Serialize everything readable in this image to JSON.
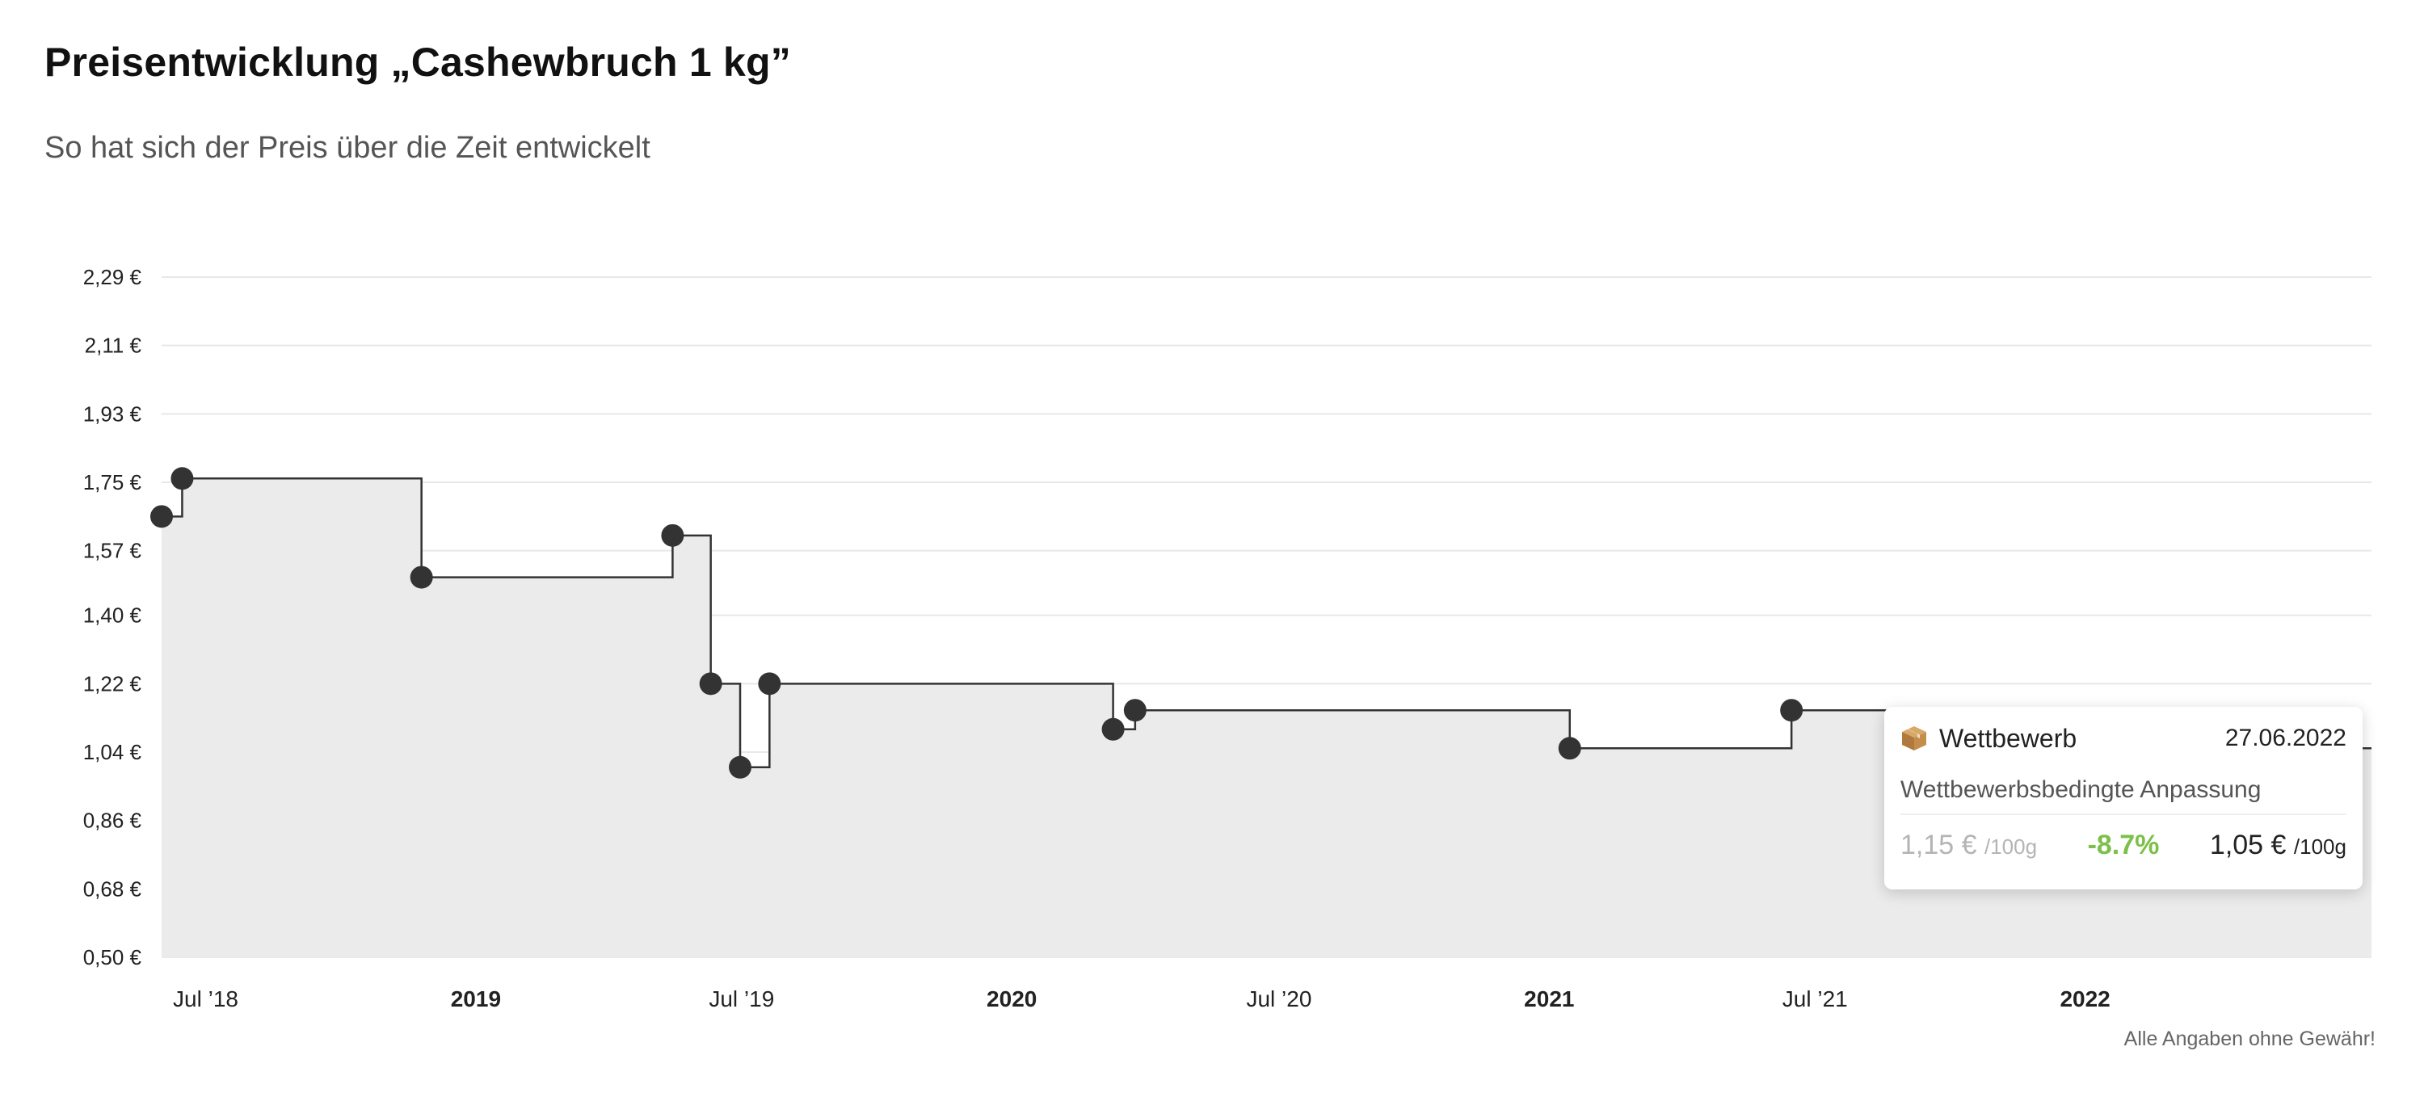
{
  "header": {
    "title": "Preisentwicklung „Cashewbruch 1 kg”",
    "subtitle": "So hat sich der Preis über die Zeit entwickelt"
  },
  "footer": {
    "disclaimer": "Alle Angaben ohne Gewähr!"
  },
  "tooltip": {
    "category": "Wettbewerb",
    "date": "27.06.2022",
    "description": "Wettbewerbsbedingte Anpassung",
    "old_price": "1,15 €",
    "old_unit": "/100g",
    "change": "-8.7%",
    "new_price": "1,05 €",
    "new_unit": "/100g",
    "icon": "package-icon"
  },
  "colors": {
    "line": "#333333",
    "fill": "#ebebeb",
    "point": "#333333",
    "change_negative": "#7cc04a",
    "grid": "#e8e8e8"
  },
  "chart_data": {
    "type": "line",
    "step": true,
    "title": "",
    "xlabel": "",
    "ylabel": "",
    "y_ticks": [
      "2,29 €",
      "2,11 €",
      "1,93 €",
      "1,75 €",
      "1,57 €",
      "1,40 €",
      "1,22 €",
      "1,04 €",
      "0,86 €",
      "0,68 €",
      "0,50 €"
    ],
    "y_tick_values": [
      2.29,
      2.11,
      1.93,
      1.75,
      1.57,
      1.4,
      1.22,
      1.04,
      0.86,
      0.68,
      0.5
    ],
    "ylim": [
      0.5,
      2.29
    ],
    "x_ticks": [
      {
        "label": "Jul ’18",
        "date": "2018-07-01",
        "bold": false
      },
      {
        "label": "2019",
        "date": "2019-01-01",
        "bold": true
      },
      {
        "label": "Jul ’19",
        "date": "2019-07-01",
        "bold": false
      },
      {
        "label": "2020",
        "date": "2020-01-01",
        "bold": true
      },
      {
        "label": "Jul ’20",
        "date": "2020-07-01",
        "bold": false
      },
      {
        "label": "2021",
        "date": "2021-01-01",
        "bold": true
      },
      {
        "label": "Jul ’21",
        "date": "2021-07-01",
        "bold": false
      },
      {
        "label": "2022",
        "date": "2022-01-01",
        "bold": true
      }
    ],
    "xlim": [
      "2018-06-01",
      "2022-07-15"
    ],
    "grid": true,
    "legend": "none",
    "series": [
      {
        "points": [
          {
            "x": "2018-06-01",
            "y": 1.66
          },
          {
            "x": "2018-06-15",
            "y": 1.76
          },
          {
            "x": "2018-11-25",
            "y": 1.5
          },
          {
            "x": "2019-05-15",
            "y": 1.61
          },
          {
            "x": "2019-06-10",
            "y": 1.22
          },
          {
            "x": "2019-06-30",
            "y": 1.0
          },
          {
            "x": "2019-07-20",
            "y": 1.22
          },
          {
            "x": "2020-03-10",
            "y": 1.1
          },
          {
            "x": "2020-03-25",
            "y": 1.15
          },
          {
            "x": "2021-01-15",
            "y": 1.05
          },
          {
            "x": "2021-06-15",
            "y": 1.15
          },
          {
            "x": "2022-06-27",
            "y": 1.05
          }
        ]
      }
    ]
  }
}
